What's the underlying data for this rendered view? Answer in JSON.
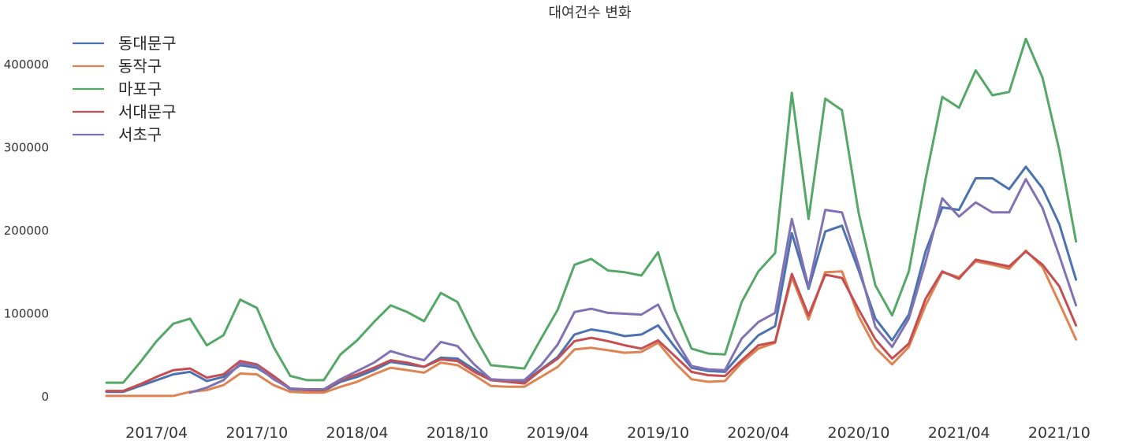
{
  "chart_data": {
    "type": "line",
    "title": "대여건수 변화",
    "xlabel": "",
    "ylabel": "",
    "legend_position": "top-left",
    "grid": false,
    "x": [
      "2017-01",
      "2017-02",
      "2017-03",
      "2017-04",
      "2017-05",
      "2017-06",
      "2017-07",
      "2017-08",
      "2017-09",
      "2017-10",
      "2017-11",
      "2017-12",
      "2018-01",
      "2018-02",
      "2018-03",
      "2018-04",
      "2018-05",
      "2018-06",
      "2018-07",
      "2018-08",
      "2018-09",
      "2018-10",
      "2018-11",
      "2018-12",
      "2019-01",
      "2019-02",
      "2019-03",
      "2019-04",
      "2019-05",
      "2019-06",
      "2019-07",
      "2019-08",
      "2019-09",
      "2019-10",
      "2019-11",
      "2019-12",
      "2020-01",
      "2020-02",
      "2020-03",
      "2020-04",
      "2020-05",
      "2020-06",
      "2020-07",
      "2020-08",
      "2020-09",
      "2020-10",
      "2020-11",
      "2020-12",
      "2021-01",
      "2021-02",
      "2021-03",
      "2021-04",
      "2021-05",
      "2021-06",
      "2021-07",
      "2021-08",
      "2021-09",
      "2021-10",
      "2021-11",
      "2021-12"
    ],
    "x_tick_labels": [
      "2017/04",
      "2017/10",
      "2018/04",
      "2018/10",
      "2019/04",
      "2019/10",
      "2020/04",
      "2020/10",
      "2021/04",
      "2021/10"
    ],
    "x_tick_positions": [
      "2017-04",
      "2017-10",
      "2018-04",
      "2018-10",
      "2019-04",
      "2019-10",
      "2020-04",
      "2020-10",
      "2021-04",
      "2021-10"
    ],
    "ylim": [
      0,
      440000
    ],
    "y_ticks": [
      0,
      100000,
      200000,
      300000,
      400000
    ],
    "series": [
      {
        "name": "동대문구",
        "color": "#4c72b0",
        "values": [
          6000,
          6000,
          13000,
          20000,
          27000,
          30000,
          19000,
          24000,
          38000,
          35000,
          22000,
          9000,
          8000,
          7000,
          18000,
          24000,
          32000,
          42000,
          39000,
          36000,
          47000,
          46000,
          33000,
          20000,
          19000,
          18000,
          33000,
          48000,
          75000,
          81000,
          78000,
          73000,
          75000,
          86000,
          60000,
          35000,
          31000,
          30000,
          53000,
          74000,
          85000,
          197000,
          130000,
          199000,
          206000,
          152000,
          94000,
          68000,
          99000,
          175000,
          228000,
          225000,
          263000,
          263000,
          250000,
          277000,
          251000,
          208000,
          141000,
          null
        ]
      },
      {
        "name": "동작구",
        "color": "#dd8452",
        "values": [
          1000,
          1000,
          1000,
          1000,
          1000,
          6000,
          8000,
          14000,
          28000,
          27000,
          14000,
          6000,
          5000,
          5000,
          12000,
          18000,
          27000,
          35000,
          32000,
          29000,
          41000,
          38000,
          26000,
          13000,
          12000,
          12000,
          24000,
          36000,
          57000,
          59000,
          56000,
          53000,
          54000,
          65000,
          41000,
          21000,
          18000,
          19000,
          41000,
          58000,
          65000,
          144000,
          93000,
          150000,
          151000,
          97000,
          59000,
          39000,
          60000,
          110000,
          150000,
          144000,
          163000,
          159000,
          154000,
          176000,
          156000,
          113000,
          69000,
          null
        ]
      },
      {
        "name": "마포구",
        "color": "#55a868",
        "values": [
          17000,
          17000,
          41000,
          67000,
          88000,
          94000,
          62000,
          74000,
          117000,
          107000,
          60000,
          25000,
          20000,
          20000,
          51000,
          68000,
          90000,
          110000,
          102000,
          91000,
          125000,
          114000,
          73000,
          38000,
          36000,
          34000,
          70000,
          105000,
          159000,
          166000,
          152000,
          150000,
          146000,
          174000,
          105000,
          58000,
          52000,
          51000,
          114000,
          151000,
          173000,
          366000,
          214000,
          359000,
          345000,
          221000,
          134000,
          98000,
          151000,
          262000,
          361000,
          348000,
          393000,
          363000,
          367000,
          431000,
          384000,
          297000,
          187000,
          null
        ]
      },
      {
        "name": "서대문구",
        "color": "#c44e52",
        "values": [
          7000,
          7000,
          15000,
          24000,
          32000,
          34000,
          23000,
          27000,
          43000,
          39000,
          25000,
          10000,
          8000,
          8000,
          20000,
          27000,
          35000,
          44000,
          41000,
          36000,
          45000,
          43000,
          30000,
          20000,
          18000,
          16000,
          32000,
          46000,
          67000,
          71000,
          67000,
          62000,
          58000,
          68000,
          49000,
          30000,
          26000,
          25000,
          44000,
          62000,
          66000,
          148000,
          98000,
          147000,
          143000,
          105000,
          69000,
          46000,
          64000,
          118000,
          151000,
          142000,
          165000,
          161000,
          157000,
          175000,
          159000,
          133000,
          86000,
          null
        ]
      },
      {
        "name": "서초구",
        "color": "#8172b3",
        "values": [
          null,
          null,
          null,
          null,
          null,
          5000,
          11000,
          20000,
          40000,
          37000,
          21000,
          10000,
          9000,
          9000,
          21000,
          31000,
          41000,
          55000,
          49000,
          44000,
          66000,
          61000,
          39000,
          21000,
          20000,
          20000,
          38000,
          63000,
          102000,
          106000,
          101000,
          100000,
          99000,
          111000,
          70000,
          37000,
          33000,
          32000,
          70000,
          90000,
          101000,
          214000,
          132000,
          225000,
          222000,
          158000,
          84000,
          60000,
          94000,
          162000,
          239000,
          217000,
          234000,
          222000,
          222000,
          262000,
          227000,
          170000,
          110000,
          null
        ]
      }
    ]
  }
}
